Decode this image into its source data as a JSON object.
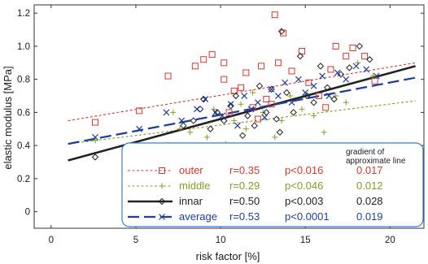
{
  "chart_data": {
    "type": "scatter",
    "xlabel": "risk factor [%]",
    "ylabel": "elastic modulus [MPa]",
    "xlim": [
      -1,
      22
    ],
    "ylim": [
      -0.1,
      1.25
    ],
    "x_ticks": [
      "0",
      "5",
      "10",
      "15",
      "20"
    ],
    "y_ticks": [
      "0",
      "0.2",
      "0.4",
      "0.6",
      "0.8",
      "1.0",
      "1.2"
    ],
    "grid": false,
    "legend": {
      "placement": "bottom-right",
      "gradient_header_line1": "gradient of",
      "gradient_header_line2": "approximate line",
      "entries": [
        {
          "series": "outer",
          "label": "outer",
          "r": "r=0.35",
          "p": "p<0.016",
          "gradient": "0.017",
          "color": "#d9352a",
          "marker": "square",
          "line": "dotted"
        },
        {
          "series": "middle",
          "label": "middle",
          "r": "r=0.29",
          "p": "p<0.046",
          "gradient": "0.012",
          "color": "#8a9a1f",
          "marker": "plus",
          "line": "dotted"
        },
        {
          "series": "innar",
          "label": "innar",
          "r": "r=0.50",
          "p": "p<0.003",
          "gradient": "0.028",
          "color": "#222222",
          "marker": "diamond",
          "line": "solid"
        },
        {
          "series": "average",
          "label": "average",
          "r": "r=0.53",
          "p": "p<0.0001",
          "gradient": "0.019",
          "color": "#1e3f9c",
          "marker": "x",
          "line": "dashed"
        }
      ]
    },
    "series": [
      {
        "name": "outer",
        "color": "#d9352a",
        "marker": "square",
        "fit": {
          "x": [
            1,
            21.5
          ],
          "y": [
            0.55,
            0.9
          ]
        },
        "x": [
          2.6,
          5.2,
          6.9,
          8.5,
          9.0,
          9.5,
          10.2,
          10.5,
          10.8,
          11.2,
          11.5,
          11.9,
          12.4,
          12.7,
          13.0,
          13.2,
          13.4,
          13.7,
          14.2,
          14.8,
          15.2,
          15.8,
          16.2,
          16.5,
          16.8,
          17.4,
          17.8,
          18.5,
          19.1,
          10.2,
          12.2
        ],
        "y": [
          0.54,
          0.61,
          0.82,
          0.88,
          0.92,
          0.95,
          0.8,
          0.6,
          0.73,
          0.75,
          0.84,
          0.63,
          0.88,
          0.68,
          0.65,
          1.19,
          0.9,
          1.08,
          0.85,
          0.97,
          0.78,
          0.7,
          0.63,
          0.86,
          1.0,
          0.94,
          0.99,
          0.94,
          0.79,
          0.9,
          0.56
        ]
      },
      {
        "name": "middle",
        "color": "#8a9a1f",
        "marker": "plus",
        "fit": {
          "x": [
            1,
            21.5
          ],
          "y": [
            0.41,
            0.67
          ]
        },
        "x": [
          2.6,
          6.7,
          7.6,
          8.2,
          9.2,
          9.6,
          10.3,
          10.8,
          11.2,
          11.5,
          12.0,
          12.5,
          12.8,
          13.2,
          13.6,
          14.1,
          14.8,
          15.5,
          16.1,
          16.8,
          17.4,
          18.1,
          19.0,
          7.2,
          11.9
        ],
        "y": [
          0.43,
          0.32,
          0.5,
          0.48,
          0.45,
          0.62,
          0.41,
          0.55,
          0.65,
          0.5,
          0.38,
          0.6,
          0.3,
          0.45,
          0.55,
          0.7,
          0.62,
          0.58,
          0.48,
          0.7,
          0.66,
          0.9,
          0.82,
          0.6,
          0.72
        ]
      },
      {
        "name": "innar",
        "color": "#222222",
        "marker": "diamond",
        "fit": {
          "x": [
            1,
            21.5
          ],
          "y": [
            0.31,
            0.88
          ]
        },
        "x": [
          2.6,
          5.3,
          6.9,
          7.8,
          8.4,
          9.0,
          9.4,
          9.8,
          10.2,
          10.6,
          10.9,
          11.3,
          11.6,
          12.0,
          12.3,
          12.7,
          13.0,
          13.3,
          13.6,
          13.9,
          14.3,
          14.7,
          15.1,
          15.5,
          15.9,
          16.3,
          16.7,
          17.1,
          17.6,
          18.2,
          18.8,
          13.5,
          8.8
        ],
        "y": [
          0.33,
          0.35,
          0.4,
          0.52,
          0.55,
          0.68,
          0.5,
          0.6,
          0.55,
          0.64,
          0.7,
          0.46,
          0.58,
          0.52,
          0.76,
          0.6,
          0.74,
          0.56,
          1.09,
          0.72,
          0.6,
          0.94,
          0.7,
          0.66,
          0.88,
          0.75,
          0.68,
          0.83,
          0.87,
          1.0,
          0.92,
          0.48,
          0.62
        ]
      },
      {
        "name": "average",
        "color": "#1e3f9c",
        "marker": "x",
        "fit": {
          "x": [
            1,
            21.5
          ],
          "y": [
            0.41,
            0.81
          ]
        },
        "x": [
          2.6,
          5.2,
          6.8,
          7.7,
          8.6,
          9.1,
          9.7,
          10.1,
          10.6,
          11.0,
          11.4,
          11.8,
          12.2,
          12.6,
          13.0,
          13.4,
          13.8,
          14.2,
          14.6,
          15.0,
          15.5,
          16.0,
          16.4,
          16.9,
          17.4,
          18.0,
          18.6,
          19.2
        ],
        "y": [
          0.45,
          0.5,
          0.6,
          0.55,
          0.62,
          0.68,
          0.6,
          0.58,
          0.65,
          0.52,
          0.7,
          0.62,
          0.66,
          0.57,
          0.74,
          0.7,
          0.78,
          0.66,
          0.8,
          0.72,
          0.76,
          0.82,
          0.7,
          0.84,
          0.8,
          0.88,
          0.86,
          0.82
        ]
      }
    ]
  }
}
